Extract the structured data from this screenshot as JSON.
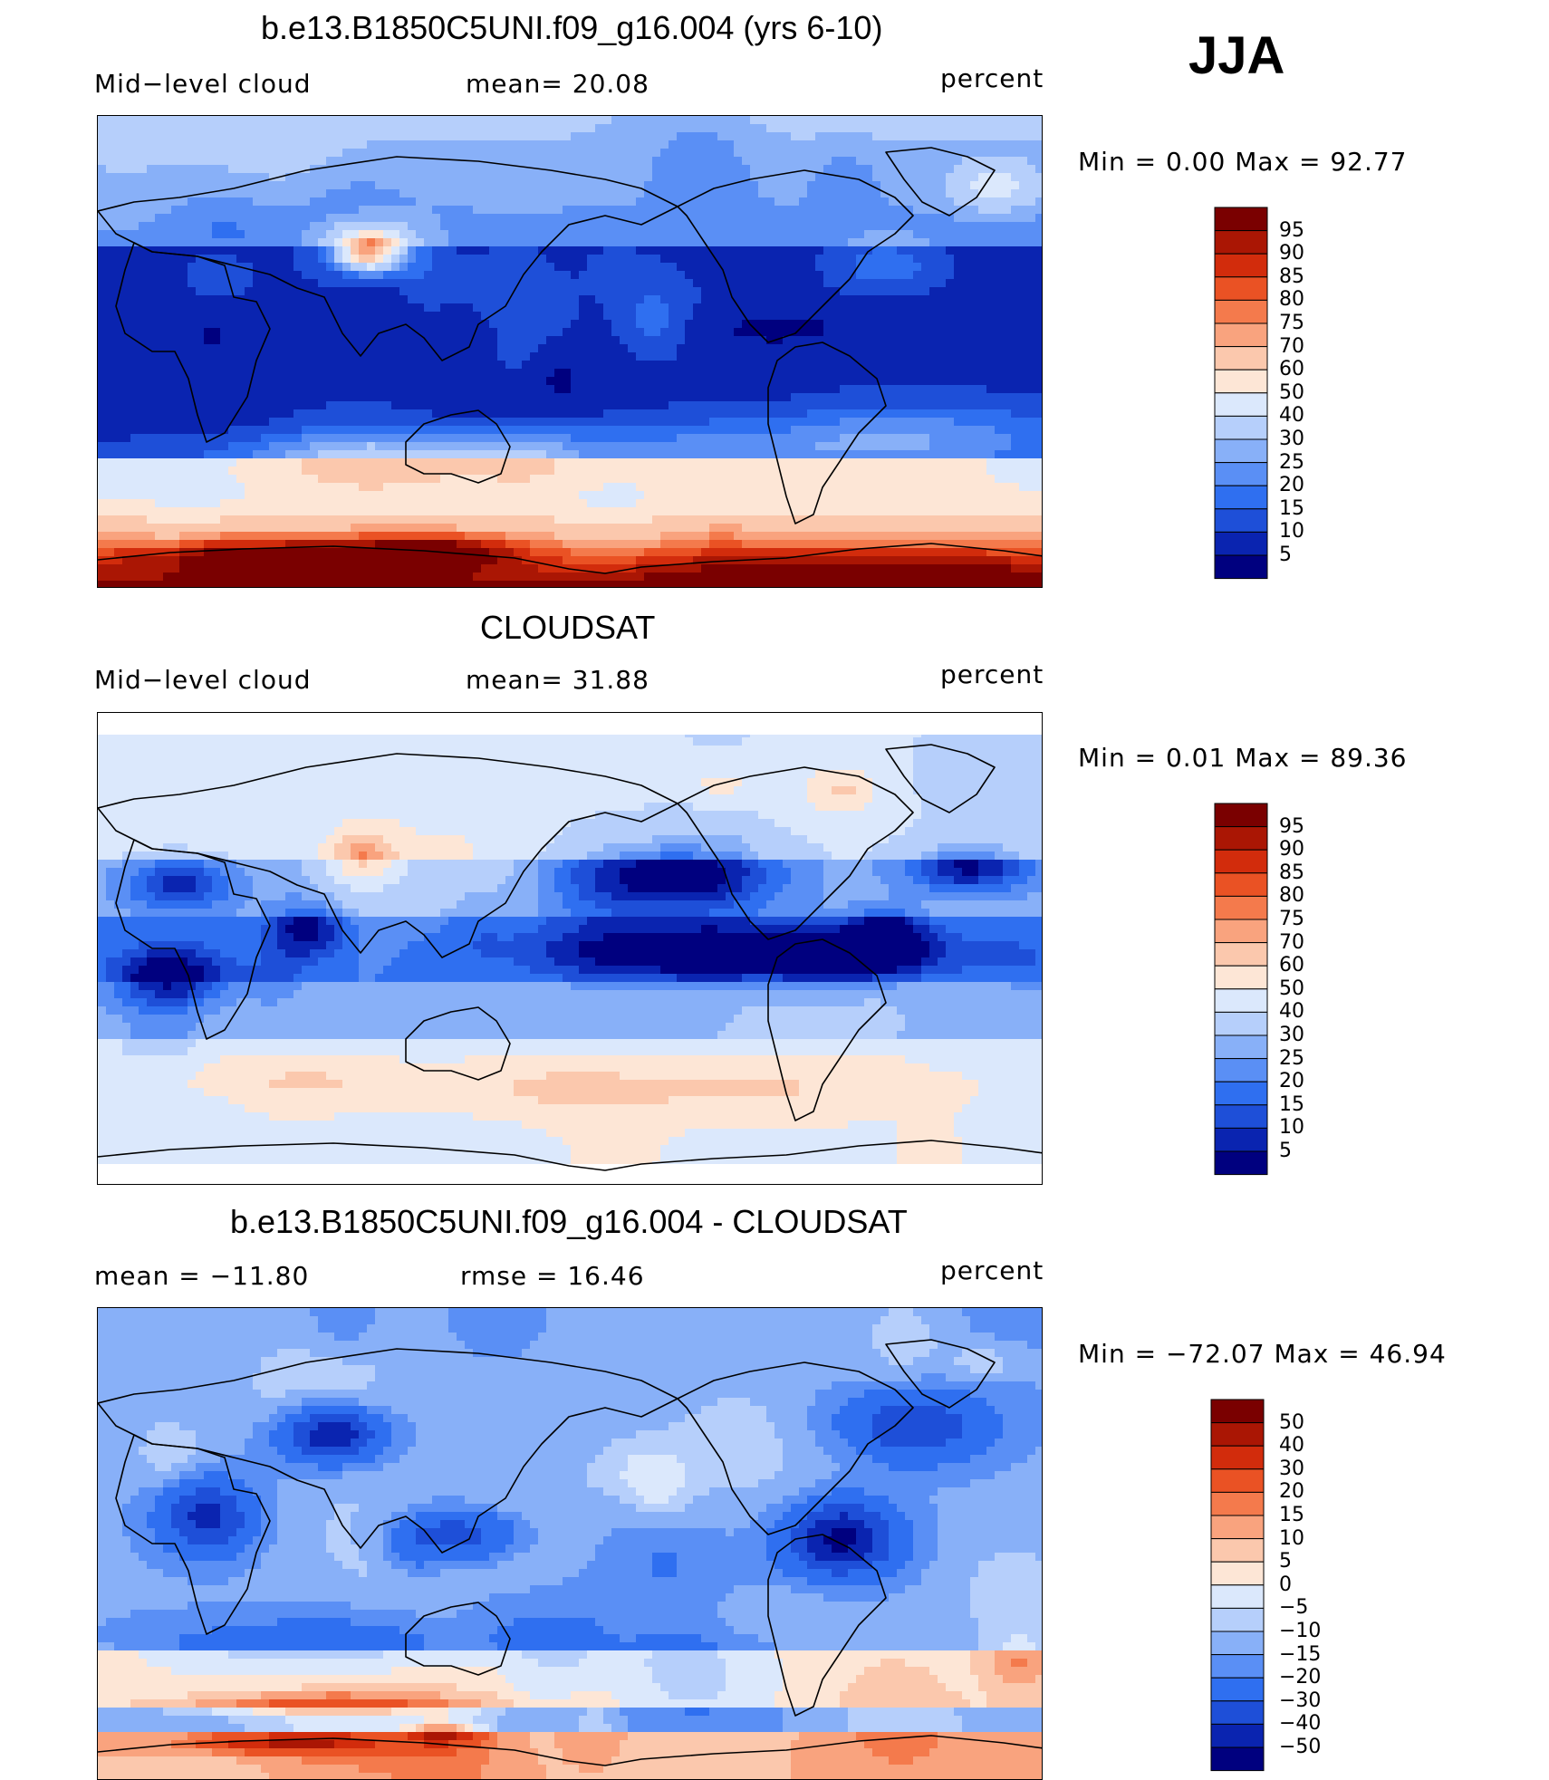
{
  "season": "JJA",
  "panels": [
    {
      "title": "b.e13.B1850C5UNI.f09_g16.004 (yrs 6-10)",
      "left_label": "Mid−level cloud",
      "center_label": "mean=  20.08",
      "units": "percent",
      "minmax": "Min =    0.00  Max =   92.77",
      "palette": [
        "#00007f",
        "#0a24b0",
        "#1e4fd8",
        "#2f6ff0",
        "#5a8ff5",
        "#88b0f8",
        "#b6cffb",
        "#dbe8fc",
        "#fde6d6",
        "#fbc8ad",
        "#f9a37e",
        "#f47a4c",
        "#ea5224",
        "#d22c0c",
        "#aa1604",
        "#7a0000"
      ],
      "labels": [
        "95",
        "90",
        "85",
        "80",
        "75",
        "70",
        "60",
        "50",
        "40",
        "30",
        "25",
        "20",
        "15",
        "10",
        "5"
      ],
      "mode": "model"
    },
    {
      "title": "CLOUDSAT",
      "left_label": "Mid−level cloud",
      "center_label": "mean=  31.88",
      "units": "percent",
      "minmax": "Min =    0.01  Max =   89.36",
      "palette": [
        "#00007f",
        "#0a24b0",
        "#1e4fd8",
        "#2f6ff0",
        "#5a8ff5",
        "#88b0f8",
        "#b6cffb",
        "#dbe8fc",
        "#fde6d6",
        "#fbc8ad",
        "#f9a37e",
        "#f47a4c",
        "#ea5224",
        "#d22c0c",
        "#aa1604",
        "#7a0000"
      ],
      "labels": [
        "95",
        "90",
        "85",
        "80",
        "75",
        "70",
        "60",
        "50",
        "40",
        "30",
        "25",
        "20",
        "15",
        "10",
        "5"
      ],
      "mode": "obs"
    },
    {
      "title": "b.e13.B1850C5UNI.f09_g16.004 - CLOUDSAT",
      "left_label": "mean = −11.80",
      "center_label": "rmse =   16.46",
      "units": "percent",
      "minmax": "Min = −72.07  Max =   46.94",
      "palette": [
        "#00007f",
        "#0a24b0",
        "#1e4fd8",
        "#2f6ff0",
        "#5a8ff5",
        "#88b0f8",
        "#b6cffb",
        "#dbe8fc",
        "#fde6d6",
        "#fbc8ad",
        "#f9a37e",
        "#f47a4c",
        "#ea5224",
        "#d22c0c",
        "#aa1604",
        "#7a0000"
      ],
      "labels": [
        "50",
        "40",
        "30",
        "20",
        "15",
        "10",
        "5",
        "0",
        "−5",
        "−10",
        "−15",
        "−20",
        "−30",
        "−40",
        "−50"
      ],
      "mode": "diff"
    }
  ]
}
